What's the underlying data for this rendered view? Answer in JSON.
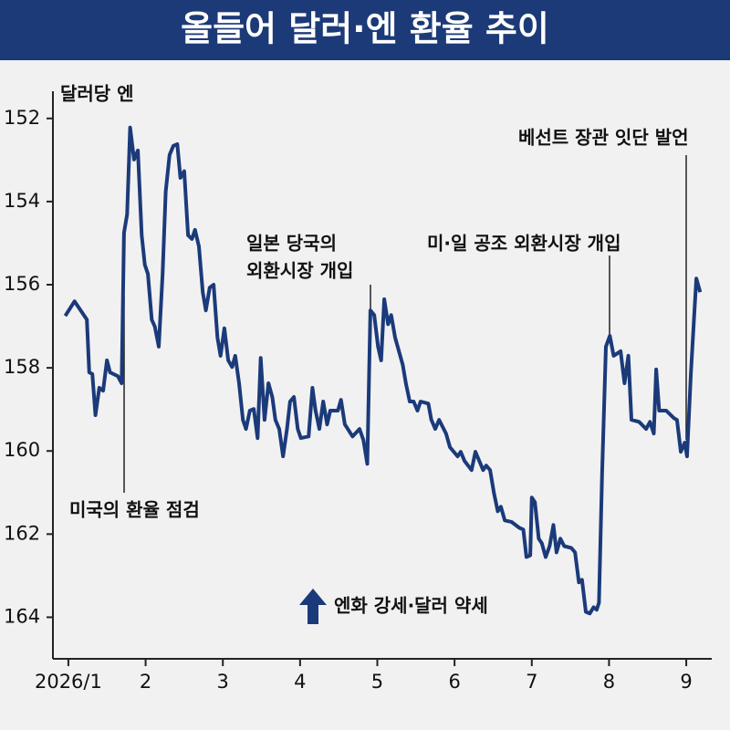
{
  "chart_data": {
    "type": "line",
    "title": "올들어 달러·엔 환율 추이",
    "y_label": "달러당 엔",
    "note": "엔화 강세·달러 약세",
    "annotations": [
      [
        "미국의 환율 점검"
      ],
      [
        "일본 당국의",
        "외환시장 개입"
      ],
      [
        "미·일 공조 외환시장 개입"
      ],
      [
        "베선트 장관 잇단 발언"
      ]
    ],
    "color": "#1b3a7a",
    "y_inverted": true,
    "grid": false,
    "xlim": [
      0.8,
      9.33
    ],
    "xticks": [
      {
        "value": 1,
        "label": "2026/1"
      },
      2,
      3,
      4,
      5,
      6,
      7,
      8,
      9
    ],
    "ylim": [
      151.5,
      165
    ],
    "yticks": [
      152,
      154,
      156,
      158,
      160,
      162,
      164
    ],
    "x": [
      0.96,
      1.08,
      1.24,
      1.27,
      1.31,
      1.35,
      1.4,
      1.45,
      1.5,
      1.54,
      1.64,
      1.69,
      1.72,
      1.76,
      1.8,
      1.85,
      1.9,
      1.95,
      1.99,
      2.03,
      2.08,
      2.12,
      2.17,
      2.22,
      2.26,
      2.31,
      2.36,
      2.41,
      2.45,
      2.5,
      2.55,
      2.6,
      2.64,
      2.69,
      2.74,
      2.78,
      2.83,
      2.88,
      2.93,
      2.97,
      3.02,
      3.07,
      3.12,
      3.16,
      3.21,
      3.26,
      3.3,
      3.35,
      3.4,
      3.45,
      3.49,
      3.54,
      3.59,
      3.64,
      3.68,
      3.73,
      3.78,
      3.83,
      3.87,
      3.92,
      3.97,
      4.01,
      4.11,
      4.16,
      4.2,
      4.25,
      4.3,
      4.35,
      4.39,
      4.49,
      4.53,
      4.58,
      4.68,
      4.77,
      4.82,
      4.87,
      4.91,
      4.96,
      5.01,
      5.05,
      5.09,
      5.14,
      5.18,
      5.23,
      5.28,
      5.33,
      5.37,
      5.42,
      5.47,
      5.52,
      5.56,
      5.66,
      5.7,
      5.75,
      5.8,
      5.89,
      5.94,
      6.04,
      6.08,
      6.13,
      6.22,
      6.27,
      6.37,
      6.41,
      6.46,
      6.51,
      6.56,
      6.6,
      6.65,
      6.74,
      6.84,
      6.89,
      6.93,
      6.98,
      7.0,
      7.04,
      7.09,
      7.13,
      7.18,
      7.23,
      7.28,
      7.32,
      7.37,
      7.42,
      7.51,
      7.56,
      7.61,
      7.65,
      7.7,
      7.75,
      7.8,
      7.84,
      7.87,
      7.91,
      7.96,
      8.01,
      8.06,
      8.15,
      8.2,
      8.25,
      8.29,
      8.39,
      8.48,
      8.53,
      8.58,
      8.61,
      8.65,
      8.74,
      8.84,
      8.88,
      8.93,
      8.98,
      9.01,
      9.06,
      9.1,
      9.13,
      9.18
    ],
    "values": [
      156.75,
      156.4,
      156.84,
      158.11,
      158.15,
      159.14,
      158.48,
      158.55,
      157.82,
      158.11,
      158.2,
      158.37,
      154.75,
      154.31,
      152.22,
      152.99,
      152.77,
      154.81,
      155.52,
      155.74,
      156.84,
      157.01,
      157.49,
      155.74,
      153.76,
      152.88,
      152.66,
      152.62,
      153.43,
      153.27,
      154.81,
      154.9,
      154.68,
      155.08,
      156.18,
      156.62,
      156.07,
      156.0,
      157.27,
      157.71,
      157.05,
      157.82,
      157.98,
      157.71,
      158.37,
      159.25,
      159.47,
      159.03,
      158.99,
      159.69,
      157.76,
      159.25,
      158.37,
      158.7,
      159.25,
      159.47,
      160.13,
      159.47,
      158.81,
      158.7,
      159.47,
      159.69,
      159.65,
      158.48,
      159.03,
      159.47,
      158.81,
      159.36,
      159.03,
      159.03,
      158.77,
      159.36,
      159.65,
      159.47,
      159.74,
      160.31,
      156.62,
      156.73,
      157.49,
      157.82,
      156.35,
      156.95,
      156.73,
      157.27,
      157.6,
      157.93,
      158.37,
      158.81,
      158.81,
      159.03,
      158.81,
      158.86,
      159.25,
      159.47,
      159.25,
      159.58,
      159.91,
      160.13,
      160.02,
      160.24,
      160.46,
      160.02,
      160.46,
      160.35,
      160.46,
      161.01,
      161.45,
      161.34,
      161.67,
      161.71,
      161.85,
      161.89,
      162.55,
      162.51,
      161.12,
      161.23,
      162.11,
      162.22,
      162.55,
      162.29,
      161.78,
      162.44,
      162.11,
      162.29,
      162.33,
      162.44,
      163.16,
      163.1,
      163.87,
      163.91,
      163.76,
      163.82,
      163.65,
      160.57,
      157.49,
      157.23,
      157.71,
      157.6,
      158.37,
      157.71,
      159.25,
      159.3,
      159.47,
      159.3,
      159.58,
      158.04,
      159.03,
      159.03,
      159.21,
      159.25,
      160.02,
      159.8,
      160.13,
      158.15,
      156.84,
      155.85,
      156.18
    ]
  }
}
